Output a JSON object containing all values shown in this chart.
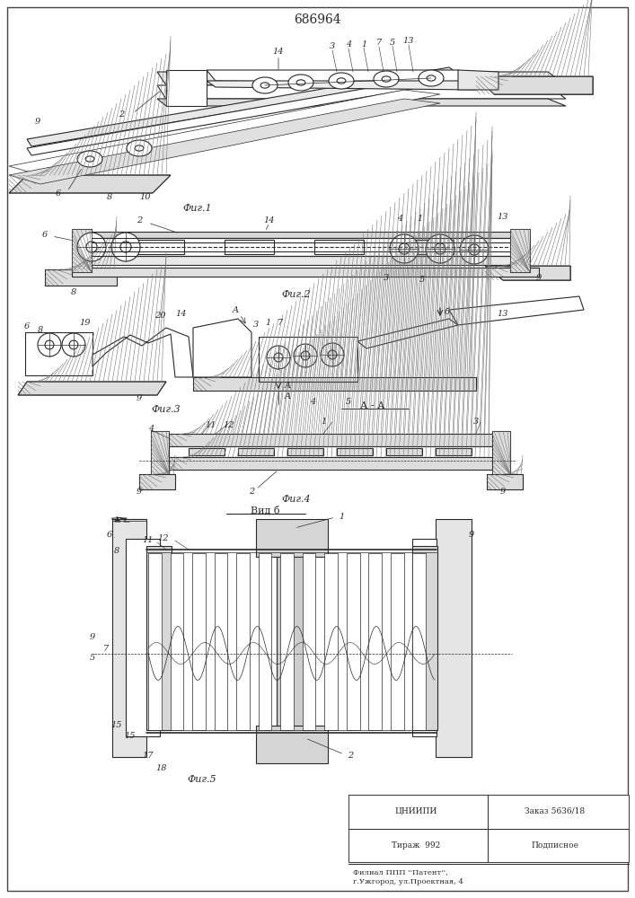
{
  "title": "686964",
  "title_fontsize": 10,
  "bg_color": "#ffffff",
  "line_color": "#2a2a2a",
  "fig1_label": "Фиг.1",
  "fig2_label": "Фиг.2",
  "fig3_label": "Фиг.3",
  "fig4_label": "Фиг.4",
  "fig5_label": "Фиг.5",
  "aa_label": "А - А",
  "vidb_label": "Вид б",
  "info_line1": "ЦНИИПИ",
  "info_order": "Заказ 5636/18",
  "info_line2": "Тираж  992",
  "info_sign": "Подписное",
  "info_line3": "Филиал ППП ''Патент'',",
  "info_line4": "г.Ужгород, ул.Проектная, 4"
}
